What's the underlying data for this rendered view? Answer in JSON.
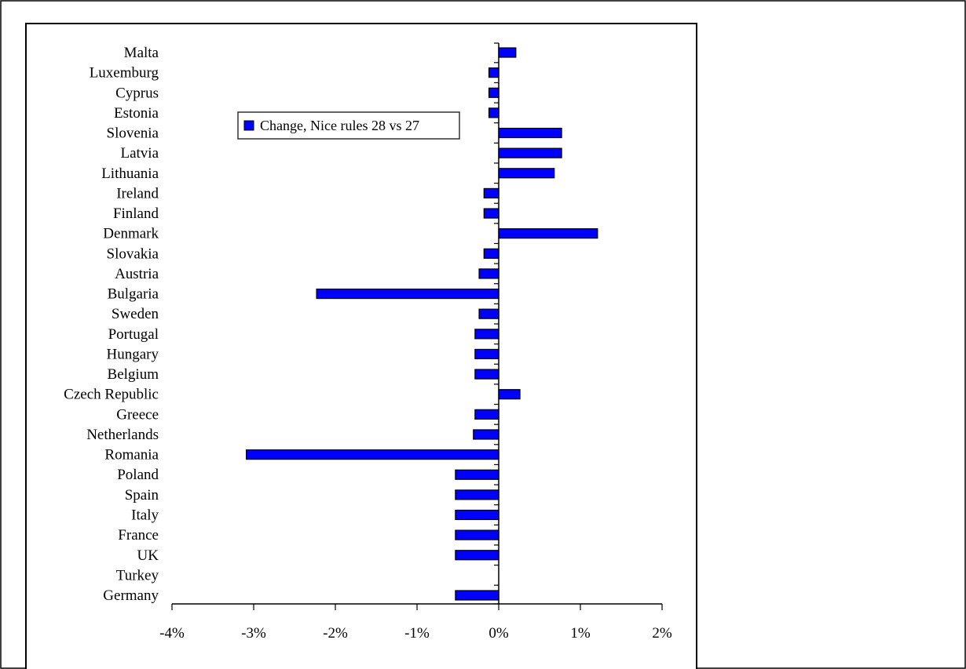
{
  "chart_data": {
    "type": "bar",
    "orientation": "horizontal",
    "title": "",
    "xlabel": "",
    "ylabel": "",
    "xlim": [
      -4,
      2
    ],
    "x_ticks": [
      -4,
      -3,
      -2,
      -1,
      0,
      1,
      2
    ],
    "tick_labels": [
      "-4%",
      "-3%",
      "-2%",
      "-1%",
      "0%",
      "1%",
      "2%"
    ],
    "tick_suffix": "%",
    "grid": false,
    "legend": {
      "position": "top-center",
      "entries": [
        "Change, Nice rules 28 vs 27"
      ]
    },
    "colors": {
      "bar_fill": "#0000ff",
      "bar_stroke": "#000000",
      "axis": "#000000"
    },
    "categories": [
      "Malta",
      "Luxemburg",
      "Cyprus",
      "Estonia",
      "Slovenia",
      "Latvia",
      "Lithuania",
      "Ireland",
      "Finland",
      "Denmark",
      "Slovakia",
      "Austria",
      "Bulgaria",
      "Sweden",
      "Portugal",
      "Hungary",
      "Belgium",
      "Czech Republic",
      "Greece",
      "Netherlands",
      "Romania",
      "Poland",
      "Spain",
      "Italy",
      "France",
      "UK",
      "Turkey",
      "Germany"
    ],
    "series": [
      {
        "name": "Change, Nice rules 28 vs 27",
        "values": [
          0.21,
          -0.12,
          -0.12,
          -0.12,
          0.77,
          0.77,
          0.68,
          -0.18,
          -0.18,
          1.21,
          -0.18,
          -0.24,
          -2.23,
          -0.24,
          -0.29,
          -0.29,
          -0.29,
          0.26,
          -0.29,
          -0.31,
          -3.09,
          -0.53,
          -0.53,
          -0.53,
          -0.53,
          -0.53,
          null,
          -0.53
        ]
      }
    ]
  }
}
